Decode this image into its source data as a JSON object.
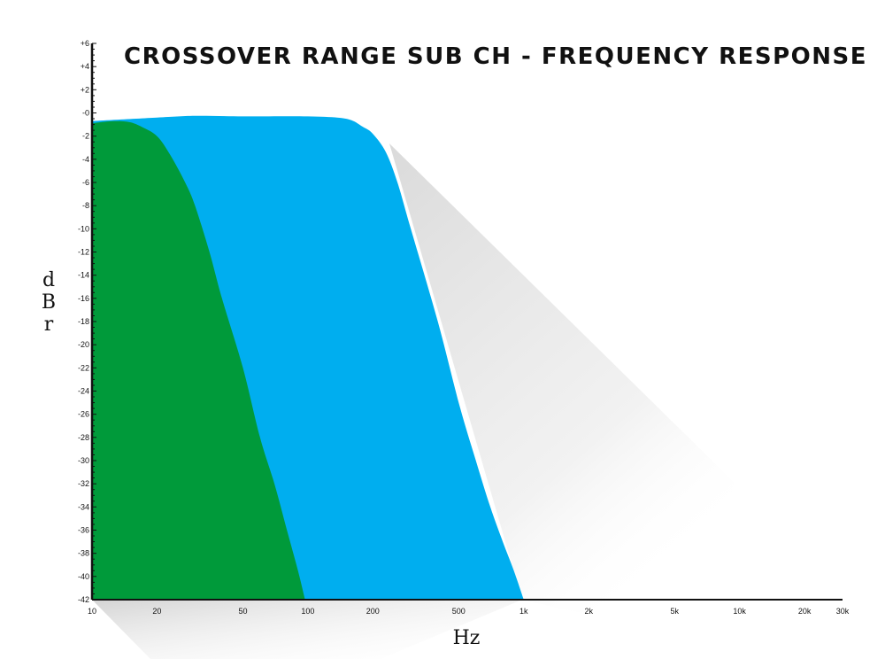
{
  "chart_data": {
    "type": "area",
    "title": "CROSSOVER RANGE SUB CH - FREQUENCY RESPONSE",
    "xlabel": "Hz",
    "ylabel": "dBr",
    "xscale": "log",
    "xlim": [
      10,
      30000
    ],
    "ylim": [
      -42,
      6
    ],
    "x_ticks": [
      {
        "value": 10,
        "label": "10"
      },
      {
        "value": 20,
        "label": "20"
      },
      {
        "value": 50,
        "label": "50"
      },
      {
        "value": 100,
        "label": "100"
      },
      {
        "value": 200,
        "label": "200"
      },
      {
        "value": 500,
        "label": "500"
      },
      {
        "value": 1000,
        "label": "1k"
      },
      {
        "value": 2000,
        "label": "2k"
      },
      {
        "value": 5000,
        "label": "5k"
      },
      {
        "value": 10000,
        "label": "10k"
      },
      {
        "value": 20000,
        "label": "20k"
      },
      {
        "value": 30000,
        "label": "30k"
      }
    ],
    "y_ticks": [
      {
        "value": 6,
        "label": "+6"
      },
      {
        "value": 4,
        "label": "+4"
      },
      {
        "value": 2,
        "label": "+2"
      },
      {
        "value": 0,
        "label": "-0"
      },
      {
        "value": -2,
        "label": "-2"
      },
      {
        "value": -4,
        "label": "-4"
      },
      {
        "value": -6,
        "label": "-6"
      },
      {
        "value": -8,
        "label": "-8"
      },
      {
        "value": -10,
        "label": "-10"
      },
      {
        "value": -12,
        "label": "-12"
      },
      {
        "value": -14,
        "label": "-14"
      },
      {
        "value": -16,
        "label": "-16"
      },
      {
        "value": -18,
        "label": "-18"
      },
      {
        "value": -20,
        "label": "-20"
      },
      {
        "value": -22,
        "label": "-22"
      },
      {
        "value": -24,
        "label": "-24"
      },
      {
        "value": -26,
        "label": "-26"
      },
      {
        "value": -28,
        "label": "-28"
      },
      {
        "value": -30,
        "label": "-30"
      },
      {
        "value": -32,
        "label": "-32"
      },
      {
        "value": -34,
        "label": "-34"
      },
      {
        "value": -36,
        "label": "-36"
      },
      {
        "value": -38,
        "label": "-38"
      },
      {
        "value": -40,
        "label": "-40"
      },
      {
        "value": -42,
        "label": "-42"
      }
    ],
    "series": [
      {
        "color": "#00aeef",
        "points": [
          [
            10,
            -0.7
          ],
          [
            20,
            -0.4
          ],
          [
            30,
            -0.25
          ],
          [
            50,
            -0.3
          ],
          [
            100,
            -0.3
          ],
          [
            150,
            -0.5
          ],
          [
            180,
            -1.2
          ],
          [
            200,
            -1.8
          ],
          [
            230,
            -3.4
          ],
          [
            260,
            -6
          ],
          [
            300,
            -10
          ],
          [
            400,
            -18
          ],
          [
            500,
            -25
          ],
          [
            600,
            -30
          ],
          [
            700,
            -34
          ],
          [
            800,
            -37
          ],
          [
            900,
            -39.5
          ],
          [
            1000,
            -42
          ]
        ]
      },
      {
        "color": "#009a3a",
        "points": [
          [
            10,
            -0.9
          ],
          [
            11,
            -0.8
          ],
          [
            13,
            -0.7
          ],
          [
            15,
            -0.8
          ],
          [
            17,
            -1.2
          ],
          [
            20,
            -2
          ],
          [
            23,
            -3.6
          ],
          [
            27,
            -6
          ],
          [
            30,
            -8
          ],
          [
            35,
            -12
          ],
          [
            40,
            -16
          ],
          [
            50,
            -22
          ],
          [
            60,
            -28
          ],
          [
            70,
            -32
          ],
          [
            80,
            -36
          ],
          [
            90,
            -39.5
          ],
          [
            97,
            -42
          ]
        ]
      }
    ]
  }
}
